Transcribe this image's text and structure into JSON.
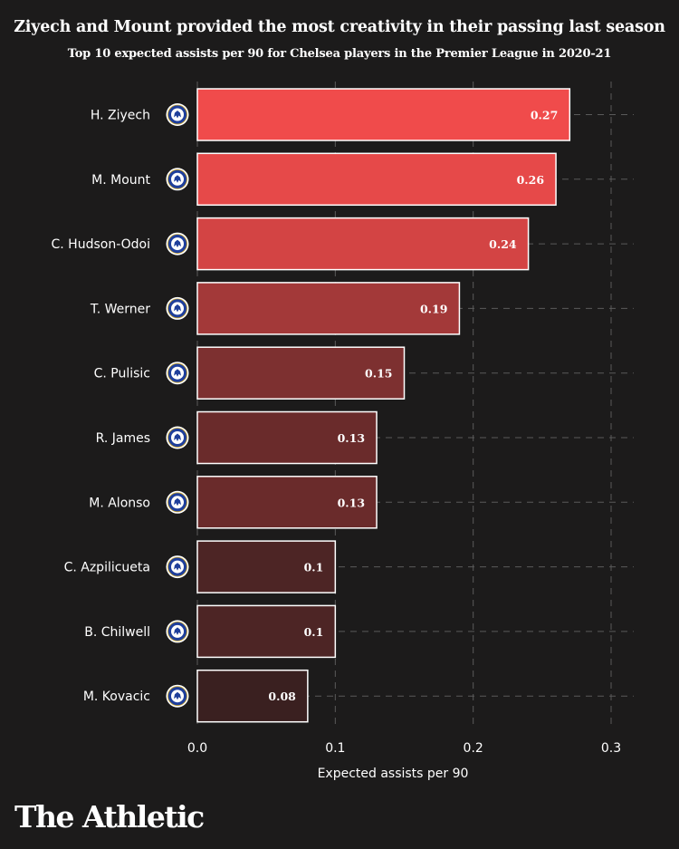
{
  "chart_data": {
    "type": "bar",
    "orientation": "horizontal",
    "title": "Ziyech and Mount provided the most creativity in their passing last season",
    "subtitle": "Top 10 expected assists per 90 for Chelsea players in the Premier League in 2020-21",
    "xlabel": "Expected assists per 90",
    "ylabel": "",
    "xlim": [
      0,
      0.3
    ],
    "x_ticks": [
      "0.0",
      "0.1",
      "0.2",
      "0.3"
    ],
    "grid": true,
    "categories": [
      "H. Ziyech",
      "M. Mount",
      "C. Hudson-Odoi",
      "T. Werner",
      "C. Pulisic",
      "R. James",
      "M. Alonso",
      "C. Azpilicueta",
      "B. Chilwell",
      "M. Kovacic"
    ],
    "values": [
      0.27,
      0.26,
      0.24,
      0.19,
      0.15,
      0.13,
      0.13,
      0.1,
      0.1,
      0.08
    ],
    "value_labels": [
      "0.27",
      "0.26",
      "0.24",
      "0.19",
      "0.15",
      "0.13",
      "0.13",
      "0.1",
      "0.1",
      "0.08"
    ],
    "colors": {
      "high": "#f04b4b",
      "low": "#3a2020",
      "bar_border": "#ffffff",
      "grid": "#5a5a5a",
      "club_badge": "#1f3f9b"
    },
    "icon": "chelsea-badge-icon"
  },
  "branding": "The Athletic"
}
